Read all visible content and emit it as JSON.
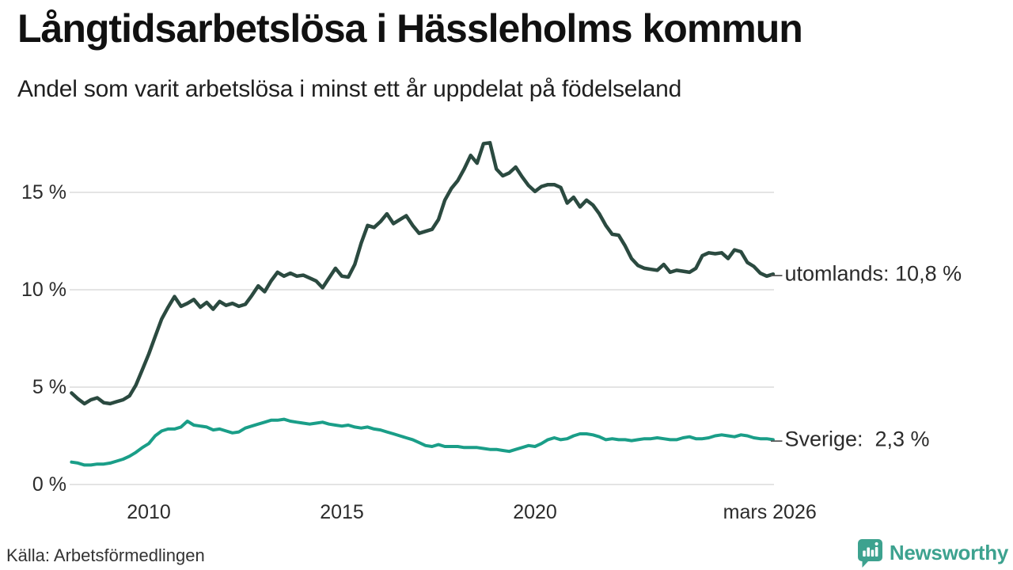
{
  "brand": {
    "name": "Newsworthy",
    "color": "#3da28f"
  },
  "colors": {
    "utomlands_line": "#2b4a40",
    "sverige_line": "#1a9e88",
    "gridline": "#e4e4e4",
    "text": "#2b2b2b"
  },
  "chart_data": {
    "type": "line",
    "title": "Långtidsarbetslösa i Hässleholms kommun",
    "subtitle": "Andel som varit arbetslösa i minst ett år uppdelat på födelseland",
    "source": "Källa: Arbetsförmedlingen",
    "x_unit": "year (decimal, monthly data 2008 – mars 2026)",
    "y_unit": "%",
    "ylim": [
      0,
      18.3
    ],
    "xlim": [
      2008,
      2026.3
    ],
    "grid": "horizontal gridlines only, no axis lines",
    "legend": "direct end-of-line labels at right",
    "y_ticks": [
      {
        "value": 0,
        "label": "0 %"
      },
      {
        "value": 5,
        "label": "5 %"
      },
      {
        "value": 10,
        "label": "10 %"
      },
      {
        "value": 15,
        "label": "15 %"
      }
    ],
    "x_ticks": [
      {
        "value": 2010,
        "label": "2010"
      },
      {
        "value": 2015,
        "label": "2015"
      },
      {
        "value": 2020,
        "label": "2020"
      },
      {
        "value": 2026.08,
        "label": "mars 2026"
      }
    ],
    "x": [
      2008,
      2008.167,
      2008.333,
      2008.5,
      2008.667,
      2008.833,
      2009,
      2009.167,
      2009.333,
      2009.5,
      2009.667,
      2009.833,
      2010,
      2010.167,
      2010.333,
      2010.5,
      2010.667,
      2010.833,
      2011,
      2011.167,
      2011.333,
      2011.5,
      2011.667,
      2011.833,
      2012,
      2012.167,
      2012.333,
      2012.5,
      2012.667,
      2012.833,
      2013,
      2013.167,
      2013.333,
      2013.5,
      2013.667,
      2013.833,
      2014,
      2014.167,
      2014.333,
      2014.5,
      2014.667,
      2014.833,
      2015,
      2015.167,
      2015.333,
      2015.5,
      2015.667,
      2015.833,
      2016,
      2016.167,
      2016.333,
      2016.5,
      2016.667,
      2016.833,
      2017,
      2017.167,
      2017.333,
      2017.5,
      2017.667,
      2017.833,
      2018,
      2018.167,
      2018.333,
      2018.5,
      2018.667,
      2018.833,
      2019,
      2019.167,
      2019.333,
      2019.5,
      2019.667,
      2019.833,
      2020,
      2020.167,
      2020.333,
      2020.5,
      2020.667,
      2020.833,
      2021,
      2021.167,
      2021.333,
      2021.5,
      2021.667,
      2021.833,
      2022,
      2022.167,
      2022.333,
      2022.5,
      2022.667,
      2022.833,
      2023,
      2023.167,
      2023.333,
      2023.5,
      2023.667,
      2023.833,
      2024,
      2024.167,
      2024.333,
      2024.5,
      2024.667,
      2024.833,
      2025,
      2025.167,
      2025.333,
      2025.5,
      2025.667,
      2025.833,
      2026,
      2026.167
    ],
    "series": [
      {
        "name": "utomlands",
        "label": "utomlands: 10,8 %",
        "latest_value": "10,8 %",
        "color": "#2b4a40",
        "stroke_width": 4.5,
        "values": [
          4.7,
          4.4,
          4.15,
          4.35,
          4.45,
          4.2,
          4.15,
          4.25,
          4.35,
          4.55,
          5.1,
          5.9,
          6.7,
          7.6,
          8.5,
          9.1,
          9.65,
          9.15,
          9.3,
          9.5,
          9.1,
          9.35,
          9.0,
          9.4,
          9.2,
          9.3,
          9.15,
          9.25,
          9.7,
          10.2,
          9.9,
          10.45,
          10.9,
          10.7,
          10.85,
          10.7,
          10.75,
          10.6,
          10.45,
          10.1,
          10.6,
          11.1,
          10.7,
          10.65,
          11.3,
          12.4,
          13.3,
          13.2,
          13.5,
          13.9,
          13.4,
          13.6,
          13.8,
          13.3,
          12.9,
          13.0,
          13.1,
          13.6,
          14.6,
          15.2,
          15.6,
          16.2,
          16.9,
          16.5,
          17.5,
          17.55,
          16.2,
          15.85,
          16.0,
          16.3,
          15.8,
          15.35,
          15.05,
          15.3,
          15.4,
          15.4,
          15.25,
          14.45,
          14.75,
          14.25,
          14.6,
          14.35,
          13.9,
          13.3,
          12.85,
          12.8,
          12.25,
          11.6,
          11.25,
          11.1,
          11.05,
          11.0,
          11.3,
          10.9,
          11.0,
          10.95,
          10.9,
          11.1,
          11.75,
          11.9,
          11.85,
          11.9,
          11.6,
          12.05,
          11.95,
          11.4,
          11.2,
          10.85,
          10.7,
          10.8
        ]
      },
      {
        "name": "Sverige",
        "label": "Sverige:  2,3 %",
        "latest_value": "2,3 %",
        "color": "#1a9e88",
        "stroke_width": 4,
        "values": [
          1.15,
          1.1,
          1.0,
          1.0,
          1.05,
          1.05,
          1.1,
          1.2,
          1.3,
          1.45,
          1.65,
          1.9,
          2.1,
          2.5,
          2.75,
          2.85,
          2.85,
          2.95,
          3.25,
          3.05,
          3.0,
          2.95,
          2.8,
          2.85,
          2.75,
          2.65,
          2.7,
          2.9,
          3.0,
          3.1,
          3.2,
          3.3,
          3.3,
          3.35,
          3.25,
          3.2,
          3.15,
          3.1,
          3.15,
          3.2,
          3.1,
          3.05,
          3.0,
          3.05,
          2.95,
          2.9,
          2.95,
          2.85,
          2.8,
          2.7,
          2.6,
          2.5,
          2.4,
          2.3,
          2.15,
          2.0,
          1.95,
          2.05,
          1.95,
          1.95,
          1.95,
          1.9,
          1.9,
          1.9,
          1.85,
          1.8,
          1.8,
          1.75,
          1.7,
          1.8,
          1.9,
          2.0,
          1.95,
          2.1,
          2.3,
          2.4,
          2.3,
          2.35,
          2.5,
          2.6,
          2.6,
          2.55,
          2.45,
          2.3,
          2.35,
          2.3,
          2.3,
          2.25,
          2.3,
          2.35,
          2.35,
          2.4,
          2.35,
          2.3,
          2.3,
          2.4,
          2.45,
          2.35,
          2.35,
          2.4,
          2.5,
          2.55,
          2.5,
          2.45,
          2.55,
          2.5,
          2.4,
          2.35,
          2.35,
          2.3
        ]
      }
    ]
  }
}
